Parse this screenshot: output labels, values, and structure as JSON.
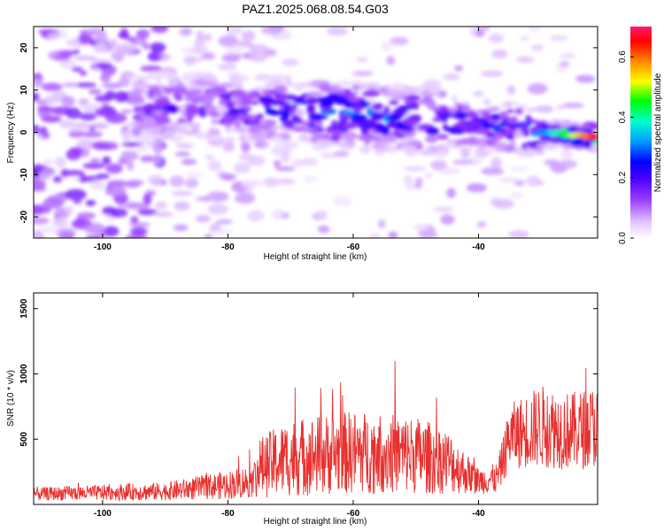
{
  "title": "PAZ1.2025.068.08.54.G03",
  "chart_data": [
    {
      "type": "heatmap",
      "xlabel": "Height of straight line (km)",
      "ylabel": "Frequency (Hz)",
      "xlim": [
        -111,
        -21
      ],
      "ylim": [
        -25,
        25
      ],
      "xticks": [
        -100,
        -80,
        -60,
        -40
      ],
      "yticks": [
        -20,
        -10,
        0,
        10,
        20
      ],
      "colorbar": {
        "label": "Normalized spectral amplitude",
        "range": [
          0,
          0.7
        ],
        "ticks": [
          "0.0",
          "0.2",
          "0.4",
          "0.6"
        ],
        "colormap": [
          "#ffffff",
          "#e6c8ff",
          "#a64dff",
          "#6a00ff",
          "#0000ff",
          "#00aaff",
          "#00ffd0",
          "#00ff00",
          "#ffff00",
          "#ff8000",
          "#ff0000",
          "#ff1a6e"
        ]
      },
      "ridge": {
        "description_points_x": [
          -95,
          -80,
          -70,
          -60,
          -50,
          -40,
          -30,
          -22
        ],
        "center_frequency_hz": [
          6,
          6,
          5,
          4,
          3,
          2,
          0,
          -1
        ],
        "peak_amplitude": [
          0.2,
          0.25,
          0.3,
          0.4,
          0.35,
          0.3,
          0.4,
          0.65
        ]
      }
    },
    {
      "type": "line",
      "xlabel": "Height of straight line (km)",
      "ylabel": "SNR (10 * v/v)",
      "xlim": [
        -111,
        -21
      ],
      "ylim": [
        0,
        1620
      ],
      "xticks": [
        -100,
        -80,
        -60,
        -40
      ],
      "yticks": [
        500,
        1000,
        1500
      ],
      "color": "#e8302e",
      "envelope": {
        "x": [
          -111,
          -100,
          -90,
          -80,
          -76,
          -75,
          -70,
          -60,
          -50,
          -45,
          -40,
          -37,
          -35,
          -30,
          -25,
          -21
        ],
        "mean": [
          80,
          90,
          100,
          150,
          180,
          280,
          360,
          400,
          380,
          330,
          180,
          200,
          520,
          600,
          560,
          600
        ],
        "spread": [
          50,
          60,
          70,
          110,
          130,
          230,
          300,
          320,
          300,
          250,
          100,
          120,
          250,
          320,
          300,
          320
        ]
      }
    }
  ]
}
